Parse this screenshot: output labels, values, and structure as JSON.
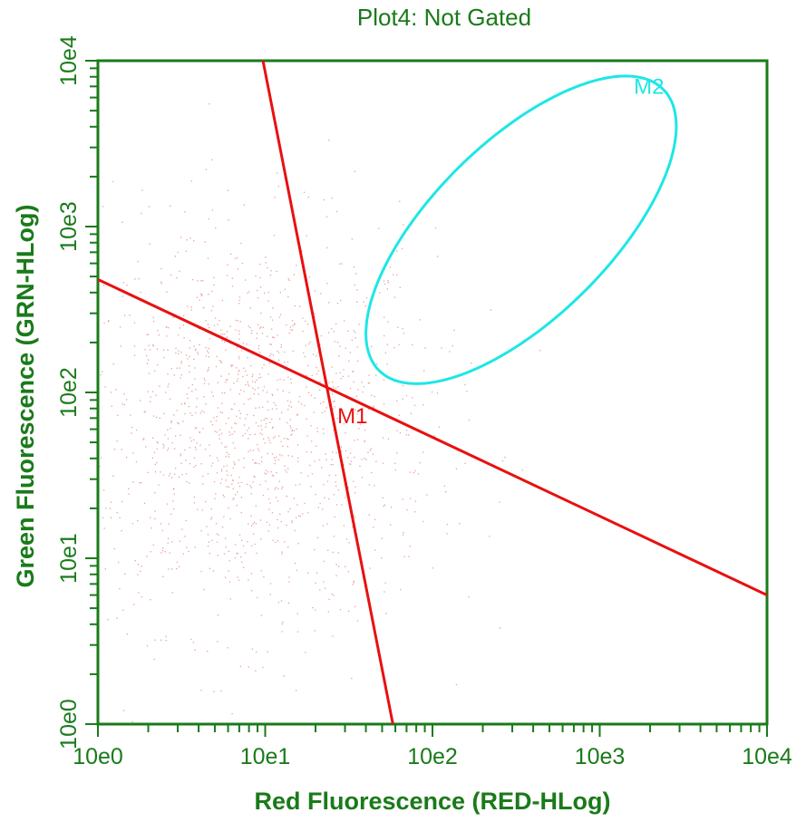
{
  "chart_data": {
    "type": "scatter",
    "title": "Plot4:  Not Gated",
    "xlabel": "Red Fluorescence (RED-HLog)",
    "ylabel": "Green Fluorescence (GRN-HLog)",
    "x_scale": "log",
    "y_scale": "log",
    "xlim": [
      1,
      10000
    ],
    "ylim": [
      1,
      10000
    ],
    "x_ticks": [
      {
        "value": 1,
        "label": "10e0"
      },
      {
        "value": 10,
        "label": "10e1"
      },
      {
        "value": 100,
        "label": "10e2"
      },
      {
        "value": 1000,
        "label": "10e3"
      },
      {
        "value": 10000,
        "label": "10e4"
      }
    ],
    "y_ticks": [
      {
        "value": 1,
        "label": "10e0"
      },
      {
        "value": 10,
        "label": "10e1"
      },
      {
        "value": 100,
        "label": "10e2"
      },
      {
        "value": 1000,
        "label": "10e3"
      },
      {
        "value": 10000,
        "label": "10e4"
      }
    ],
    "grid": false,
    "population": {
      "description": "faint dot cloud",
      "color": "#e8a0a0",
      "center": [
        8,
        60
      ],
      "spread_decades": [
        0.55,
        0.6
      ]
    },
    "markers": [
      {
        "name": "M1",
        "type": "quadrant-lines",
        "color": "#e81010",
        "lines": [
          {
            "from": [
              9.7,
              10000
            ],
            "to": [
              58,
              1
            ]
          },
          {
            "from": [
              1,
              480
            ],
            "to": [
              10000,
              6
            ]
          }
        ],
        "label_at": [
          27,
          65
        ]
      },
      {
        "name": "M2",
        "type": "ellipse",
        "color": "#1ee6e6",
        "center_log": [
          2.53,
          2.98
        ],
        "semi_axis_major_decades": 1.2,
        "semi_axis_minor_decades": 0.53,
        "rotation_deg": 45,
        "label_at": [
          1600,
          6300
        ]
      }
    ],
    "colors": {
      "axis": "#1a7a1a",
      "text": "#1a7a1a"
    }
  }
}
